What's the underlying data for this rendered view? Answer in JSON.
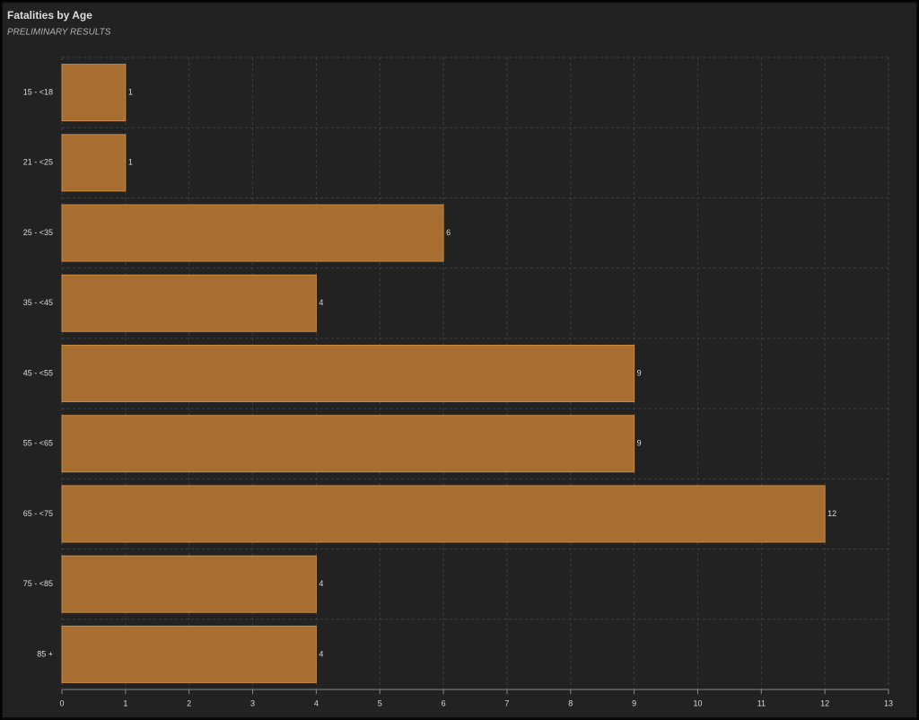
{
  "chart_data": {
    "type": "bar",
    "orientation": "horizontal",
    "title": "Fatalities by Age",
    "subtitle": "PRELIMINARY RESULTS",
    "categories": [
      "15 - <18",
      "21 - <25",
      "25 - <35",
      "35 - <45",
      "45 - <55",
      "55 - <65",
      "65 - <75",
      "75 - <85",
      "85 +"
    ],
    "values": [
      1,
      1,
      6,
      4,
      9,
      9,
      12,
      4,
      4
    ],
    "color": "#a86d31",
    "xlim": [
      0,
      13
    ],
    "xticks": [
      0,
      1,
      2,
      3,
      4,
      5,
      6,
      7,
      8,
      9,
      10,
      11,
      12,
      13
    ],
    "grid": true
  }
}
